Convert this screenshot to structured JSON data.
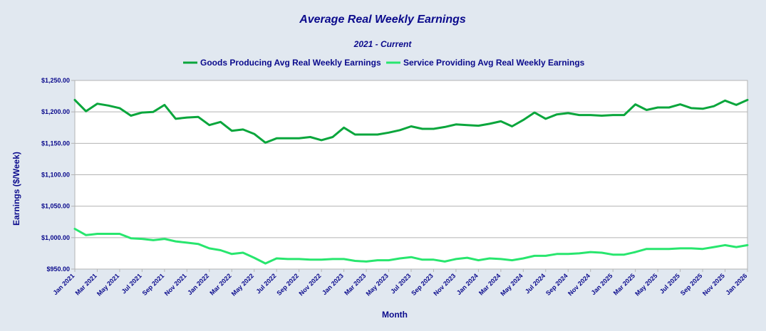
{
  "chart_data": {
    "type": "line",
    "title": "Average Real Weekly Earnings",
    "subtitle": "2021 - Current",
    "xlabel": "Month",
    "ylabel": "Earnings ($/Week)",
    "ylim": [
      950,
      1250
    ],
    "yticks": [
      950,
      1000,
      1050,
      1100,
      1150,
      1200,
      1250
    ],
    "ytick_labels": [
      "$950.00",
      "$1,000.00",
      "$1,050.00",
      "$1,100.00",
      "$1,150.00",
      "$1,200.00",
      "$1,250.00"
    ],
    "grid": true,
    "legend_position": "top-center",
    "x_tick_labels": [
      "Jan 2021",
      "Mar 2021",
      "May 2021",
      "Jul 2021",
      "Sep 2021",
      "Nov 2021",
      "Jan 2022",
      "Mar 2022",
      "May 2022",
      "Jul 2022",
      "Sep 2022",
      "Nov 2022",
      "Jan 2023",
      "Mar 2023",
      "May 2023",
      "Jul 2023",
      "Sep 2023",
      "Nov 2023",
      "Jan 2024",
      "Mar 2024",
      "May 2024",
      "Jul 2024",
      "Sep 2024",
      "Nov 2024",
      "Jan 2025",
      "Mar 2025",
      "May 2025",
      "Jul 2025",
      "Sep 2025",
      "Nov 2025",
      "Jan 2026"
    ],
    "series": [
      {
        "name": "Goods Producing Avg Real Weekly Earnings",
        "color": "#0aa63c",
        "values": [
          1219,
          1201,
          1213,
          1210,
          1206,
          1194,
          1199,
          1200,
          1211,
          1189,
          1191,
          1192,
          1179,
          1184,
          1170,
          1172,
          1165,
          1151,
          1158,
          1158,
          1158,
          1160,
          1155,
          1160,
          1175,
          1164,
          1164,
          1164,
          1167,
          1171,
          1177,
          1173,
          1173,
          1176,
          1180,
          1179,
          1178,
          1181,
          1185,
          1177,
          1187,
          1199,
          1189,
          1196,
          1198,
          1195,
          1195,
          1194,
          1195,
          1195,
          1212,
          1203,
          1207,
          1207,
          1212,
          1206,
          1205,
          1209,
          1218,
          1211,
          1219
        ]
      },
      {
        "name": "Service Providing Avg Real Weekly Earnings",
        "color": "#28e66e",
        "values": [
          1014,
          1004,
          1006,
          1006,
          1006,
          999,
          998,
          996,
          998,
          994,
          992,
          990,
          983,
          980,
          974,
          976,
          968,
          959,
          967,
          966,
          966,
          965,
          965,
          966,
          966,
          963,
          962,
          964,
          964,
          967,
          969,
          965,
          965,
          962,
          966,
          968,
          964,
          967,
          966,
          964,
          967,
          971,
          971,
          974,
          974,
          975,
          977,
          976,
          973,
          973,
          977,
          982,
          982,
          982,
          983,
          983,
          982,
          985,
          988,
          985,
          988
        ]
      }
    ]
  }
}
